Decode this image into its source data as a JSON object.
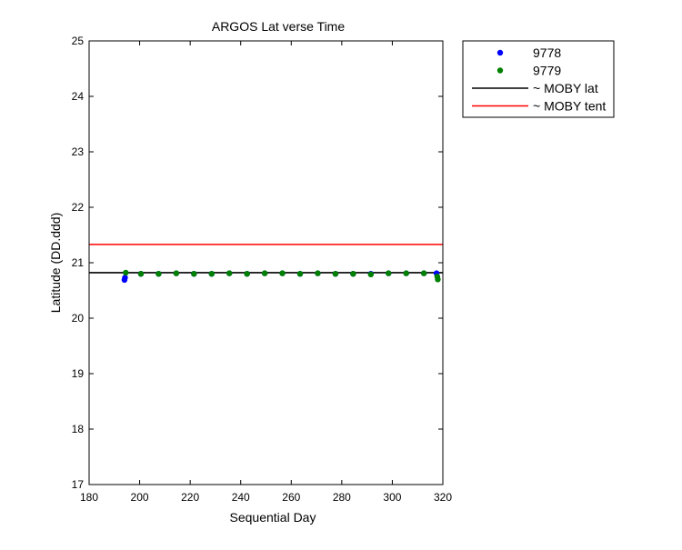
{
  "chart_data": {
    "type": "scatter",
    "title": "ARGOS Lat verse Time",
    "xlabel": "Sequential Day",
    "ylabel": "Latitude (DD.ddd)",
    "xlim": [
      180,
      320
    ],
    "ylim": [
      17,
      25
    ],
    "xticks": [
      180,
      200,
      220,
      240,
      260,
      280,
      300,
      320
    ],
    "yticks": [
      17,
      18,
      19,
      20,
      21,
      22,
      23,
      24,
      25
    ],
    "grid": false,
    "legend_position": "outside-top-right",
    "series": [
      {
        "name": "9778",
        "kind": "scatter",
        "color": "#0000ff",
        "x": [
          194,
          194.2,
          200.5,
          207.5,
          214.5,
          221.5,
          228.5,
          235.5,
          242.5,
          249.5,
          256.5,
          263.5,
          270.5,
          277.5,
          284.5,
          291.5,
          298.5,
          305.5,
          312.5,
          317.5
        ],
        "y": [
          20.69,
          20.73,
          20.8,
          20.8,
          20.81,
          20.8,
          20.8,
          20.81,
          20.8,
          20.81,
          20.81,
          20.8,
          20.81,
          20.8,
          20.8,
          20.8,
          20.81,
          20.81,
          20.81,
          20.81
        ]
      },
      {
        "name": "9779",
        "kind": "scatter",
        "color": "#008000",
        "x": [
          194.5,
          200.5,
          207.5,
          214.5,
          221.5,
          228.5,
          235.5,
          242.5,
          249.5,
          256.5,
          263.5,
          270.5,
          277.5,
          284.5,
          291.5,
          298.5,
          305.5,
          312.5,
          317.8,
          318
        ],
        "y": [
          20.82,
          20.8,
          20.8,
          20.81,
          20.8,
          20.8,
          20.81,
          20.8,
          20.81,
          20.81,
          20.8,
          20.81,
          20.8,
          20.8,
          20.79,
          20.81,
          20.81,
          20.81,
          20.75,
          20.7
        ]
      },
      {
        "name": "~ MOBY lat",
        "kind": "hline",
        "color": "#000000",
        "y": 20.82
      },
      {
        "name": "~ MOBY tent",
        "kind": "hline",
        "color": "#ff0000",
        "y": 21.33
      }
    ]
  }
}
